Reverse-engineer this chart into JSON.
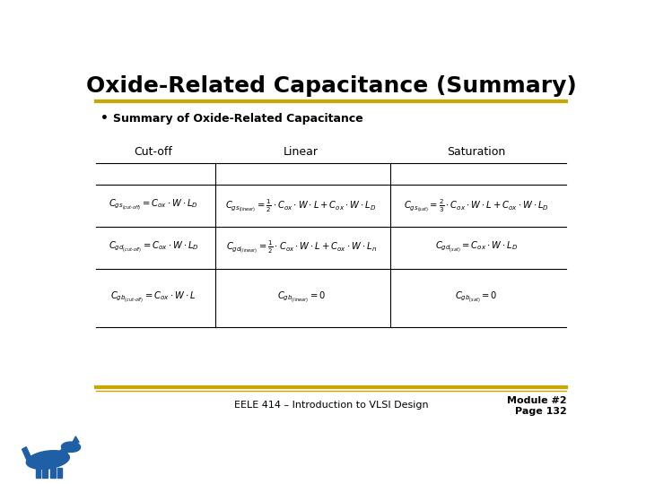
{
  "title": "Oxide-Related Capacitance (Summary)",
  "title_color": "#000000",
  "title_fontsize": 18,
  "title_bold": true,
  "bg_color": "#ffffff",
  "gold_line_color": "#C8A800",
  "bullet_text": "Summary of Oxide-Related Capacitance",
  "col_headers": [
    "Cut-off",
    "Linear",
    "Saturation"
  ],
  "footer_text": "EELE 414 – Introduction to VLSI Design",
  "footer_module": "Module #2",
  "footer_page": "Page 132"
}
